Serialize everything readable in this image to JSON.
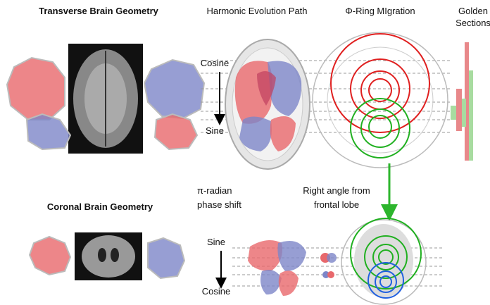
{
  "transverse_title": "Transverse Brain Geometry",
  "harmonic_title": "Harmonic Evolution Path",
  "ring_title": "Φ-Ring MIgration",
  "golden_title": [
    "Golden",
    "Sections"
  ],
  "top_axis": {
    "start": "Cosine",
    "end": "Sine"
  },
  "coronal_title": "Coronal Brain Geometry",
  "phase_note": [
    "π-radian",
    "phase shift"
  ],
  "angle_note": [
    "Right angle from",
    "frontal lobe"
  ],
  "bottom_axis": {
    "start": "Sine",
    "end": "Cosine"
  }
}
